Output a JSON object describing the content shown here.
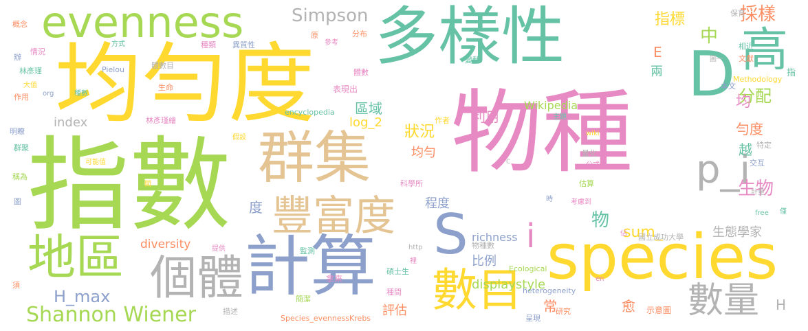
{
  "palette": {
    "green": "#a6d854",
    "teal": "#66c2a5",
    "yellow": "#ffd92f",
    "pink": "#e78ac3",
    "blue": "#8da0cb",
    "orange": "#fc8d62",
    "tan": "#e5c494",
    "gray": "#b3b3b3"
  },
  "words": [
    {
      "text": "物種",
      "color": "pink"
    },
    {
      "text": "指數",
      "color": "green"
    },
    {
      "text": "多樣性",
      "color": "teal"
    },
    {
      "text": "均勻度",
      "color": "yellow"
    },
    {
      "text": "evenness",
      "color": "green"
    },
    {
      "text": "群集",
      "color": "tan"
    },
    {
      "text": "計算",
      "color": "blue"
    },
    {
      "text": "species",
      "color": "yellow"
    },
    {
      "text": "豐富度",
      "color": "tan"
    },
    {
      "text": "個體",
      "color": "gray"
    },
    {
      "text": "地區",
      "color": "green"
    },
    {
      "text": "D",
      "color": "teal"
    },
    {
      "text": "S",
      "color": "blue"
    },
    {
      "text": "高",
      "color": "teal"
    },
    {
      "text": "數目",
      "color": "yellow"
    },
    {
      "text": "數量",
      "color": "gray"
    },
    {
      "text": "p_i",
      "color": "gray"
    },
    {
      "text": "i",
      "color": "pink"
    },
    {
      "text": "Shannon Wiener",
      "color": "green"
    },
    {
      "text": "Simpson",
      "color": "gray"
    },
    {
      "text": "H_max",
      "color": "blue"
    },
    {
      "text": "diversity",
      "color": "orange"
    },
    {
      "text": "displaystyle",
      "color": "green"
    },
    {
      "text": "sum_",
      "color": "yellow"
    },
    {
      "text": "index",
      "color": "gray"
    },
    {
      "text": "Wikipedia",
      "color": "green"
    },
    {
      "text": "log_2",
      "color": "yellow"
    },
    {
      "text": "richness",
      "color": "blue"
    },
    {
      "text": "生態學家",
      "color": "gray"
    },
    {
      "text": "生物",
      "color": "pink"
    },
    {
      "text": "採樣",
      "color": "orange"
    },
    {
      "text": "指標",
      "color": "yellow"
    },
    {
      "text": "分配",
      "color": "green"
    },
    {
      "text": "比例",
      "color": "blue"
    },
    {
      "text": "程度",
      "color": "blue"
    },
    {
      "text": "利用",
      "color": "pink"
    },
    {
      "text": "狀況",
      "color": "yellow"
    },
    {
      "text": "區域",
      "color": "teal"
    },
    {
      "text": "均勻",
      "color": "orange"
    },
    {
      "text": "評估",
      "color": "orange"
    },
    {
      "text": "中",
      "color": "green"
    },
    {
      "text": "物",
      "color": "teal"
    },
    {
      "text": "度",
      "color": "blue"
    },
    {
      "text": "勻度",
      "color": "orange"
    },
    {
      "text": "越",
      "color": "teal"
    },
    {
      "text": "均",
      "color": "pink"
    },
    {
      "text": "兩",
      "color": "teal"
    },
    {
      "text": "E",
      "color": "orange"
    },
    {
      "text": "H",
      "color": "gray"
    },
    {
      "text": "常",
      "color": "orange"
    },
    {
      "text": "愈",
      "color": "orange"
    },
    {
      "text": "國立成功大學",
      "color": "gray"
    },
    {
      "text": "林彥瑾",
      "color": "teal"
    },
    {
      "text": "林彥瑾繪",
      "color": "pink"
    },
    {
      "text": "Pielou",
      "color": "blue"
    },
    {
      "text": "encyclopedia",
      "color": "teal"
    },
    {
      "text": "heterogeneity",
      "color": "blue"
    },
    {
      "text": "Methodology",
      "color": "yellow"
    },
    {
      "text": "Species_evennessKrebs",
      "color": "orange"
    },
    {
      "text": "Ecological",
      "color": "green"
    },
    {
      "text": "物種數",
      "color": "gray"
    },
    {
      "text": "碩士生",
      "color": "teal"
    },
    {
      "text": "示意圖",
      "color": "orange"
    },
    {
      "text": "研究",
      "color": "orange"
    },
    {
      "text": "拿來",
      "color": "pink"
    },
    {
      "text": "簡潔",
      "color": "green"
    },
    {
      "text": "種間",
      "color": "pink"
    },
    {
      "text": "監測",
      "color": "teal"
    },
    {
      "text": "體數目",
      "color": "gray"
    },
    {
      "text": "種類",
      "color": "pink"
    },
    {
      "text": "異質性",
      "color": "blue"
    },
    {
      "text": "分布",
      "color": "orange"
    },
    {
      "text": "參考",
      "color": "pink"
    },
    {
      "text": "變動",
      "color": "teal"
    },
    {
      "text": "保育",
      "color": "gray"
    },
    {
      "text": "相近",
      "color": "teal"
    },
    {
      "text": "文獻",
      "color": "orange"
    },
    {
      "text": "本文",
      "color": "blue"
    },
    {
      "text": "主題",
      "color": "teal"
    },
    {
      "text": "表現出",
      "color": "pink"
    },
    {
      "text": "作者",
      "color": "yellow"
    },
    {
      "text": "體數",
      "color": "pink"
    },
    {
      "text": "生命",
      "color": "orange"
    },
    {
      "text": "種數",
      "color": "teal"
    },
    {
      "text": "作用",
      "color": "orange"
    },
    {
      "text": "大值",
      "color": "yellow"
    },
    {
      "text": "情況",
      "color": "pink"
    },
    {
      "text": "辦",
      "color": "blue"
    },
    {
      "text": "概念",
      "color": "orange"
    },
    {
      "text": "方式",
      "color": "teal"
    },
    {
      "text": "原",
      "color": "orange"
    },
    {
      "text": "明瞭",
      "color": "blue"
    },
    {
      "text": "群聚",
      "color": "teal"
    },
    {
      "text": "可能值",
      "color": "yellow"
    },
    {
      "text": "稱為",
      "color": "green"
    },
    {
      "text": "圖",
      "color": "blue"
    },
    {
      "text": "須",
      "color": "orange"
    },
    {
      "text": "假設",
      "color": "yellow"
    },
    {
      "text": "科學所",
      "color": "pink"
    },
    {
      "text": "量化",
      "color": "gray"
    },
    {
      "text": "公式",
      "color": "pink"
    },
    {
      "text": "估算",
      "color": "green"
    },
    {
      "text": "交互",
      "color": "blue"
    },
    {
      "text": "特定",
      "color": "gray"
    },
    {
      "text": "計量",
      "color": "gray"
    },
    {
      "text": "僅",
      "color": "teal"
    },
    {
      "text": "考慮到",
      "color": "pink"
    },
    {
      "text": "時",
      "color": "blue"
    },
    {
      "text": "free",
      "color": "teal"
    },
    {
      "text": "wiki",
      "color": "yellow"
    },
    {
      "text": "org",
      "color": "blue"
    },
    {
      "text": "http",
      "color": "gray"
    },
    {
      "text": "提供",
      "color": "pink"
    },
    {
      "text": "描述",
      "color": "gray"
    },
    {
      "text": "呈現",
      "color": "blue"
    },
    {
      "text": "en",
      "color": "pink"
    },
    {
      "text": "佔",
      "color": "pink"
    },
    {
      "text": "裡",
      "color": "pink"
    },
    {
      "text": "間",
      "color": "yellow"
    },
    {
      "text": "C",
      "color": "gray"
    },
    {
      "text": "圖一",
      "color": "gray"
    },
    {
      "text": "指",
      "color": "teal"
    }
  ]
}
